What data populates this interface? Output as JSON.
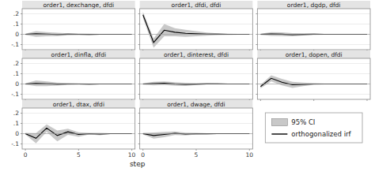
{
  "chart_data": [
    {
      "type": "line",
      "title": "order1, dexchange, dfdi",
      "x": [
        0,
        1,
        2,
        3,
        4,
        5,
        6,
        7,
        8,
        9,
        10
      ],
      "series": [
        {
          "name": "95% CI",
          "type": "area",
          "color": "#c8c8c8",
          "upper": [
            0.005,
            0.03,
            0.022,
            0.015,
            0.01,
            0.007,
            0.005,
            0.003,
            0.002,
            0.002,
            0.001
          ],
          "lower": [
            -0.005,
            -0.025,
            -0.02,
            -0.018,
            -0.01,
            -0.007,
            -0.006,
            -0.004,
            -0.002,
            -0.002,
            -0.001
          ]
        },
        {
          "name": "orthogonalized irf",
          "type": "line",
          "color": "#000000",
          "values": [
            0.0,
            0.005,
            0.002,
            -0.002,
            0.001,
            0.0,
            -0.001,
            0.0,
            0.0,
            0.0,
            0.0
          ]
        }
      ],
      "xlim": [
        -0.3,
        10.3
      ],
      "ylim": [
        -0.15,
        0.25
      ],
      "xticks": [
        0,
        5,
        10
      ],
      "yticks": [
        {
          "value": -0.1,
          "label": "-.1"
        },
        0,
        {
          "value": 0.1,
          "label": ".1"
        },
        {
          "value": 0.2,
          "label": ".2"
        }
      ],
      "grid": true,
      "tick_labels": "y"
    },
    {
      "type": "line",
      "title": "order1, dfdi, dfdi",
      "x": [
        0,
        1,
        2,
        3,
        4,
        5,
        6,
        7,
        8,
        9,
        10
      ],
      "series": [
        {
          "name": "95% CI",
          "type": "area",
          "color": "#c8c8c8",
          "upper": [
            0.22,
            -0.04,
            0.1,
            0.06,
            0.045,
            0.03,
            0.018,
            0.01,
            0.006,
            0.004,
            0.002
          ],
          "lower": [
            0.16,
            -0.13,
            -0.02,
            -0.02,
            -0.025,
            -0.02,
            -0.014,
            -0.008,
            -0.006,
            -0.004,
            -0.002
          ]
        },
        {
          "name": "orthogonalized irf",
          "type": "line",
          "color": "#000000",
          "values": [
            0.19,
            -0.08,
            0.04,
            0.02,
            0.01,
            0.005,
            0.002,
            0.001,
            0.0,
            0.0,
            0.0
          ]
        }
      ],
      "xlim": [
        -0.3,
        10.3
      ],
      "ylim": [
        -0.15,
        0.25
      ],
      "xticks": [
        0,
        5,
        10
      ],
      "yticks": [
        {
          "value": -0.1,
          "label": "-.1"
        },
        0,
        {
          "value": 0.1,
          "label": ".1"
        },
        {
          "value": 0.2,
          "label": ".2"
        }
      ],
      "grid": true,
      "tick_labels": false
    },
    {
      "type": "line",
      "title": "order1, dgdp, dfdi",
      "x": [
        0,
        1,
        2,
        3,
        4,
        5,
        6,
        7,
        8,
        9,
        10
      ],
      "series": [
        {
          "name": "95% CI",
          "type": "area",
          "color": "#c8c8c8",
          "upper": [
            0.005,
            0.022,
            0.02,
            0.012,
            0.009,
            0.006,
            0.004,
            0.003,
            0.002,
            0.001,
            0.001
          ],
          "lower": [
            -0.005,
            -0.016,
            -0.018,
            -0.02,
            -0.011,
            -0.006,
            -0.004,
            -0.003,
            -0.002,
            -0.001,
            -0.001
          ]
        },
        {
          "name": "orthogonalized irf",
          "type": "line",
          "color": "#000000",
          "values": [
            0.0,
            0.003,
            0.001,
            -0.004,
            -0.001,
            0.001,
            0.0,
            0.0,
            0.0,
            0.0,
            0.0
          ]
        }
      ],
      "xlim": [
        -0.3,
        10.3
      ],
      "ylim": [
        -0.15,
        0.25
      ],
      "xticks": [
        0,
        5,
        10
      ],
      "yticks": [
        {
          "value": -0.1,
          "label": "-.1"
        },
        0,
        {
          "value": 0.1,
          "label": ".1"
        },
        {
          "value": 0.2,
          "label": ".2"
        }
      ],
      "grid": true,
      "tick_labels": false
    },
    {
      "type": "line",
      "title": "order1, dinfla, dfdi",
      "x": [
        0,
        1,
        2,
        3,
        4,
        5,
        6,
        7,
        8,
        9,
        10
      ],
      "series": [
        {
          "name": "95% CI",
          "type": "area",
          "color": "#c8c8c8",
          "upper": [
            0.005,
            0.035,
            0.025,
            0.014,
            0.009,
            0.006,
            0.004,
            0.003,
            0.002,
            0.001,
            0.001
          ],
          "lower": [
            -0.005,
            -0.022,
            -0.021,
            -0.016,
            -0.009,
            -0.006,
            -0.005,
            -0.003,
            -0.002,
            -0.001,
            -0.001
          ]
        },
        {
          "name": "orthogonalized irf",
          "type": "line",
          "color": "#000000",
          "values": [
            0.0,
            0.005,
            0.002,
            -0.001,
            0.0,
            0.0,
            -0.001,
            0.0,
            0.0,
            0.0,
            0.0
          ]
        }
      ],
      "xlim": [
        -0.3,
        10.3
      ],
      "ylim": [
        -0.15,
        0.25
      ],
      "xticks": [
        0,
        5,
        10
      ],
      "yticks": [
        {
          "value": -0.1,
          "label": "-.1"
        },
        0,
        {
          "value": 0.1,
          "label": ".1"
        },
        {
          "value": 0.2,
          "label": ".2"
        }
      ],
      "grid": true,
      "tick_labels": "y"
    },
    {
      "type": "line",
      "title": "order1, dinterest, dfdi",
      "x": [
        0,
        1,
        2,
        3,
        4,
        5,
        6,
        7,
        8,
        9,
        10
      ],
      "series": [
        {
          "name": "95% CI",
          "type": "area",
          "color": "#c8c8c8",
          "upper": [
            0.006,
            0.022,
            0.025,
            0.018,
            0.011,
            0.007,
            0.006,
            0.004,
            0.003,
            0.002,
            0.001
          ],
          "lower": [
            -0.006,
            -0.014,
            -0.009,
            -0.018,
            -0.019,
            -0.009,
            -0.004,
            -0.003,
            -0.003,
            -0.002,
            -0.001
          ]
        },
        {
          "name": "orthogonalized irf",
          "type": "line",
          "color": "#000000",
          "values": [
            0.0,
            0.004,
            0.008,
            0.0,
            -0.004,
            -0.001,
            0.001,
            0.001,
            0.0,
            0.0,
            0.0
          ]
        }
      ],
      "xlim": [
        -0.3,
        10.3
      ],
      "ylim": [
        -0.15,
        0.25
      ],
      "xticks": [
        0,
        5,
        10
      ],
      "yticks": [
        {
          "value": -0.1,
          "label": "-.1"
        },
        0,
        {
          "value": 0.1,
          "label": ".1"
        },
        {
          "value": 0.2,
          "label": ".2"
        }
      ],
      "grid": true,
      "tick_labels": false
    },
    {
      "type": "line",
      "title": "order1, dopen, dfdi",
      "x": [
        0,
        1,
        2,
        3,
        4,
        5,
        6,
        7,
        8,
        9,
        10
      ],
      "series": [
        {
          "name": "95% CI",
          "type": "area",
          "color": "#c8c8c8",
          "upper": [
            -0.008,
            0.085,
            0.05,
            0.022,
            0.014,
            0.007,
            0.004,
            0.003,
            0.002,
            0.001,
            0.001
          ],
          "lower": [
            -0.042,
            0.025,
            -0.014,
            -0.038,
            -0.022,
            -0.007,
            -0.004,
            -0.003,
            -0.002,
            -0.001,
            -0.001
          ]
        },
        {
          "name": "orthogonalized irf",
          "type": "line",
          "color": "#000000",
          "values": [
            -0.025,
            0.055,
            0.018,
            -0.008,
            -0.004,
            0.0,
            0.0,
            0.0,
            0.0,
            0.0,
            0.0
          ]
        }
      ],
      "xlim": [
        -0.3,
        10.3
      ],
      "ylim": [
        -0.15,
        0.25
      ],
      "xticks": [
        0,
        5,
        10
      ],
      "yticks": [
        {
          "value": -0.1,
          "label": "-.1"
        },
        0,
        {
          "value": 0.1,
          "label": ".1"
        },
        {
          "value": 0.2,
          "label": ".2"
        }
      ],
      "grid": true,
      "tick_labels": false
    },
    {
      "type": "line",
      "title": "order1, dtax, dfdi",
      "x": [
        0,
        1,
        2,
        3,
        4,
        5,
        6,
        7,
        8,
        9,
        10
      ],
      "series": [
        {
          "name": "95% CI",
          "type": "area",
          "color": "#c8c8c8",
          "upper": [
            0.008,
            0.005,
            0.09,
            0.03,
            0.048,
            0.014,
            0.008,
            0.007,
            0.004,
            0.003,
            0.002
          ],
          "lower": [
            -0.008,
            -0.095,
            0.018,
            -0.075,
            -0.012,
            -0.03,
            -0.008,
            -0.015,
            -0.004,
            -0.003,
            -0.002
          ]
        },
        {
          "name": "orthogonalized irf",
          "type": "line",
          "color": "#000000",
          "values": [
            0.0,
            -0.045,
            0.055,
            -0.018,
            0.018,
            -0.008,
            0.0,
            -0.004,
            0.0,
            0.0,
            0.0
          ]
        }
      ],
      "xlim": [
        -0.3,
        10.3
      ],
      "ylim": [
        -0.15,
        0.25
      ],
      "xticks": [
        0,
        5,
        10
      ],
      "yticks": [
        {
          "value": -0.1,
          "label": "-.1"
        },
        0,
        {
          "value": 0.1,
          "label": ".1"
        },
        {
          "value": 0.2,
          "label": ".2"
        }
      ],
      "grid": true,
      "xlabel": "step"
    },
    {
      "type": "line",
      "title": "order1, dwage, dfdi",
      "x": [
        0,
        1,
        2,
        3,
        4,
        5,
        6,
        7,
        8,
        9,
        10
      ],
      "series": [
        {
          "name": "95% CI",
          "type": "area",
          "color": "#c8c8c8",
          "upper": [
            0.007,
            0.012,
            0.018,
            0.022,
            0.01,
            0.007,
            0.004,
            0.003,
            0.002,
            0.001,
            0.001
          ],
          "lower": [
            -0.007,
            -0.048,
            -0.034,
            -0.014,
            -0.018,
            -0.008,
            -0.006,
            -0.004,
            -0.002,
            -0.001,
            -0.001
          ]
        },
        {
          "name": "orthogonalized irf",
          "type": "line",
          "color": "#000000",
          "values": [
            0.0,
            -0.018,
            -0.008,
            0.004,
            -0.004,
            0.0,
            -0.001,
            0.0,
            0.0,
            0.0,
            0.0
          ]
        }
      ],
      "xlim": [
        -0.3,
        10.3
      ],
      "ylim": [
        -0.15,
        0.25
      ],
      "xticks": [
        0,
        5,
        10
      ],
      "yticks": [
        {
          "value": -0.1,
          "label": "-.1"
        },
        0,
        {
          "value": 0.1,
          "label": ".1"
        },
        {
          "value": 0.2,
          "label": ".2"
        }
      ],
      "grid": true,
      "tick_labels": "x"
    }
  ]
}
